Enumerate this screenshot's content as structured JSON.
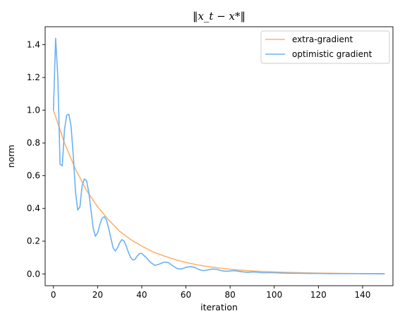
{
  "chart_data": {
    "type": "line",
    "title": "‖x_t − x*‖",
    "xlabel": "iteration",
    "ylabel": "norm",
    "xlim": [
      -3.75,
      153.75
    ],
    "ylim": [
      -0.072,
      1.51
    ],
    "xticks": [
      0,
      20,
      40,
      60,
      80,
      100,
      120,
      140
    ],
    "yticks": [
      0.0,
      0.2,
      0.4,
      0.6,
      0.8,
      1.0,
      1.2,
      1.4
    ],
    "xtick_labels": [
      "0",
      "20",
      "40",
      "60",
      "80",
      "100",
      "120",
      "140"
    ],
    "ytick_labels": [
      "0.0",
      "0.2",
      "0.4",
      "0.6",
      "0.8",
      "1.0",
      "1.2",
      "1.4"
    ],
    "grid": false,
    "legend_position": "top-right",
    "series": [
      {
        "name": "extra-gradient",
        "color": "#ffb26b",
        "x": [
          0,
          5,
          10,
          15,
          20,
          25,
          30,
          35,
          40,
          45,
          50,
          55,
          60,
          65,
          70,
          75,
          80,
          85,
          90,
          95,
          100,
          105,
          110,
          115,
          120,
          125,
          130,
          135,
          140,
          145,
          150
        ],
        "y": [
          1.0,
          0.8,
          0.64,
          0.51,
          0.41,
          0.33,
          0.26,
          0.21,
          0.17,
          0.135,
          0.11,
          0.088,
          0.07,
          0.056,
          0.045,
          0.036,
          0.029,
          0.023,
          0.018,
          0.015,
          0.012,
          0.0095,
          0.0076,
          0.006,
          0.0048,
          0.0039,
          0.0031,
          0.0025,
          0.002,
          0.0016,
          0.0013
        ]
      },
      {
        "name": "optimistic gradient",
        "color": "#6ab2f2",
        "x": [
          0,
          1,
          2,
          3,
          4,
          5,
          6,
          7,
          8,
          9,
          10,
          11,
          12,
          13,
          14,
          15,
          16,
          17,
          18,
          19,
          20,
          21,
          22,
          23,
          24,
          25,
          26,
          27,
          28,
          29,
          30,
          31,
          32,
          33,
          34,
          35,
          36,
          37,
          38,
          39,
          40,
          42,
          44,
          46,
          48,
          50,
          52,
          54,
          56,
          58,
          60,
          62,
          64,
          66,
          68,
          70,
          72,
          74,
          76,
          78,
          80,
          82,
          84,
          86,
          88,
          90,
          92,
          94,
          96,
          98,
          100,
          104,
          108,
          112,
          116,
          120,
          125,
          130,
          135,
          140,
          145,
          150
        ],
        "y": [
          1.0,
          1.44,
          1.2,
          0.67,
          0.66,
          0.88,
          0.97,
          0.975,
          0.9,
          0.72,
          0.5,
          0.39,
          0.41,
          0.54,
          0.58,
          0.57,
          0.5,
          0.39,
          0.28,
          0.23,
          0.25,
          0.3,
          0.34,
          0.35,
          0.33,
          0.28,
          0.22,
          0.16,
          0.14,
          0.16,
          0.19,
          0.21,
          0.2,
          0.17,
          0.13,
          0.1,
          0.085,
          0.09,
          0.11,
          0.125,
          0.125,
          0.1,
          0.07,
          0.052,
          0.06,
          0.072,
          0.07,
          0.05,
          0.033,
          0.03,
          0.04,
          0.045,
          0.04,
          0.026,
          0.02,
          0.025,
          0.03,
          0.028,
          0.02,
          0.016,
          0.018,
          0.02,
          0.016,
          0.012,
          0.01,
          0.012,
          0.011,
          0.008,
          0.007,
          0.008,
          0.007,
          0.005,
          0.004,
          0.004,
          0.003,
          0.003,
          0.002,
          0.002,
          0.002,
          0.0015,
          0.0012,
          0.001
        ]
      }
    ]
  }
}
